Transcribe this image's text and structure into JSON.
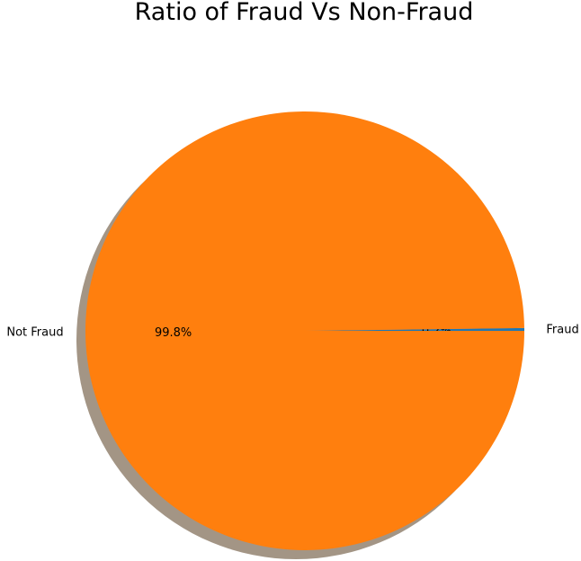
{
  "chart_data": {
    "type": "pie",
    "title": "Ratio of Fraud Vs Non-Fraud",
    "slices": [
      {
        "label": "Fraud",
        "value": 0.2,
        "pct_label": "0.2%",
        "color": "#1f77b4"
      },
      {
        "label": "Not Fraud",
        "value": 99.8,
        "pct_label": "99.8%",
        "color": "#ff7f0e"
      }
    ],
    "shadow": true,
    "shadow_color": "#a39585"
  }
}
